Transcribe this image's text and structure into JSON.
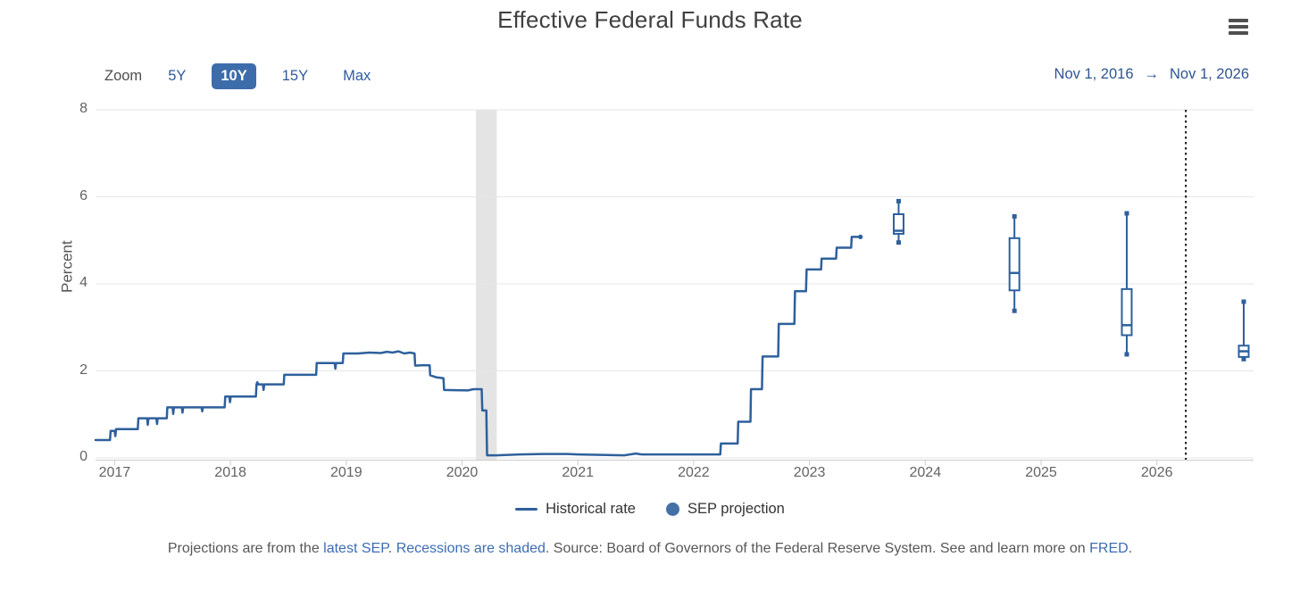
{
  "header": {
    "title": "Effective Federal Funds Rate",
    "menu_icon": "hamburger-icon"
  },
  "toolbar": {
    "zoom_label": "Zoom",
    "buttons": [
      {
        "label": "5Y",
        "selected": false
      },
      {
        "label": "10Y",
        "selected": true
      },
      {
        "label": "15Y",
        "selected": false
      },
      {
        "label": "Max",
        "selected": false
      }
    ],
    "range": {
      "from": "Nov 1, 2016",
      "arrow": "→",
      "to": "Nov 1, 2026"
    }
  },
  "colors": {
    "line": "#2e609c",
    "legend_dot": "#4470a8",
    "selected_button_bg": "#3d6cab",
    "link_blue": "#3c6db0",
    "gridline": "#e6e6e6",
    "axis_line": "#cccccc",
    "recession_band": "#e4e4e4",
    "divider": "#1a1a1a"
  },
  "chart_data": {
    "type": "line",
    "title": "Effective Federal Funds Rate",
    "xlabel": "",
    "ylabel": "Percent",
    "ylim": [
      0,
      8
    ],
    "yticks": [
      0,
      2,
      4,
      6,
      8
    ],
    "xlim": [
      2016.835,
      2026.835
    ],
    "xticks": [
      2017,
      2018,
      2019,
      2020,
      2021,
      2022,
      2023,
      2024,
      2025,
      2026
    ],
    "grid": true,
    "legend_position": "bottom",
    "recession_band": {
      "from": 2020.12,
      "to": 2020.3
    },
    "projection_divider_x": 2026.25,
    "series": [
      {
        "name": "Historical rate",
        "type": "line",
        "units": "percent",
        "points": [
          [
            2016.835,
            0.41
          ],
          [
            2016.96,
            0.41
          ],
          [
            2016.965,
            0.62
          ],
          [
            2017.0,
            0.62
          ],
          [
            2017.006,
            0.5
          ],
          [
            2017.012,
            0.66
          ],
          [
            2017.2,
            0.66
          ],
          [
            2017.205,
            0.91
          ],
          [
            2017.28,
            0.91
          ],
          [
            2017.286,
            0.76
          ],
          [
            2017.292,
            0.91
          ],
          [
            2017.36,
            0.91
          ],
          [
            2017.366,
            0.78
          ],
          [
            2017.372,
            0.91
          ],
          [
            2017.45,
            0.91
          ],
          [
            2017.455,
            1.16
          ],
          [
            2017.5,
            1.16
          ],
          [
            2017.506,
            1.01
          ],
          [
            2017.512,
            1.16
          ],
          [
            2017.58,
            1.16
          ],
          [
            2017.586,
            1.04
          ],
          [
            2017.592,
            1.16
          ],
          [
            2017.75,
            1.16
          ],
          [
            2017.756,
            1.07
          ],
          [
            2017.762,
            1.16
          ],
          [
            2017.95,
            1.16
          ],
          [
            2017.955,
            1.41
          ],
          [
            2017.99,
            1.41
          ],
          [
            2017.996,
            1.28
          ],
          [
            2018.002,
            1.41
          ],
          [
            2018.22,
            1.41
          ],
          [
            2018.225,
            1.69
          ],
          [
            2018.232,
            1.74
          ],
          [
            2018.24,
            1.69
          ],
          [
            2018.28,
            1.69
          ],
          [
            2018.286,
            1.56
          ],
          [
            2018.292,
            1.69
          ],
          [
            2018.46,
            1.69
          ],
          [
            2018.465,
            1.91
          ],
          [
            2018.74,
            1.91
          ],
          [
            2018.745,
            2.18
          ],
          [
            2018.9,
            2.18
          ],
          [
            2018.906,
            2.05
          ],
          [
            2018.912,
            2.18
          ],
          [
            2018.97,
            2.18
          ],
          [
            2018.975,
            2.4
          ],
          [
            2019.1,
            2.4
          ],
          [
            2019.2,
            2.42
          ],
          [
            2019.3,
            2.41
          ],
          [
            2019.35,
            2.44
          ],
          [
            2019.4,
            2.42
          ],
          [
            2019.45,
            2.45
          ],
          [
            2019.5,
            2.4
          ],
          [
            2019.55,
            2.42
          ],
          [
            2019.59,
            2.4
          ],
          [
            2019.595,
            2.12
          ],
          [
            2019.65,
            2.13
          ],
          [
            2019.72,
            2.13
          ],
          [
            2019.725,
            1.9
          ],
          [
            2019.78,
            1.85
          ],
          [
            2019.84,
            1.83
          ],
          [
            2019.845,
            1.56
          ],
          [
            2020.05,
            1.55
          ],
          [
            2020.1,
            1.58
          ],
          [
            2020.17,
            1.58
          ],
          [
            2020.175,
            1.09
          ],
          [
            2020.21,
            1.09
          ],
          [
            2020.216,
            0.06
          ],
          [
            2020.3,
            0.06
          ],
          [
            2020.5,
            0.08
          ],
          [
            2020.7,
            0.09
          ],
          [
            2020.9,
            0.09
          ],
          [
            2021.0,
            0.08
          ],
          [
            2021.2,
            0.07
          ],
          [
            2021.4,
            0.06
          ],
          [
            2021.5,
            0.1
          ],
          [
            2021.55,
            0.08
          ],
          [
            2021.7,
            0.08
          ],
          [
            2021.9,
            0.08
          ],
          [
            2022.0,
            0.08
          ],
          [
            2022.1,
            0.08
          ],
          [
            2022.23,
            0.08
          ],
          [
            2022.235,
            0.33
          ],
          [
            2022.38,
            0.33
          ],
          [
            2022.385,
            0.83
          ],
          [
            2022.49,
            0.83
          ],
          [
            2022.495,
            1.58
          ],
          [
            2022.59,
            1.58
          ],
          [
            2022.595,
            2.33
          ],
          [
            2022.73,
            2.33
          ],
          [
            2022.735,
            3.08
          ],
          [
            2022.87,
            3.08
          ],
          [
            2022.875,
            3.83
          ],
          [
            2022.97,
            3.83
          ],
          [
            2022.975,
            4.33
          ],
          [
            2023.1,
            4.33
          ],
          [
            2023.105,
            4.58
          ],
          [
            2023.23,
            4.58
          ],
          [
            2023.235,
            4.83
          ],
          [
            2023.36,
            4.83
          ],
          [
            2023.365,
            5.08
          ],
          [
            2023.44,
            5.08
          ]
        ]
      },
      {
        "name": "SEP projection",
        "type": "boxplot",
        "units": "percent",
        "points": [
          {
            "x": 2023.77,
            "low": 4.95,
            "q1": 5.15,
            "median": 5.22,
            "q3": 5.6,
            "high": 5.9
          },
          {
            "x": 2024.77,
            "low": 3.38,
            "q1": 3.85,
            "median": 4.25,
            "q3": 5.05,
            "high": 5.55
          },
          {
            "x": 2025.74,
            "low": 2.38,
            "q1": 2.82,
            "median": 3.05,
            "q3": 3.88,
            "high": 5.62
          },
          {
            "x": 2026.75,
            "low": 2.27,
            "q1": 2.32,
            "median": 2.45,
            "q3": 2.58,
            "high": 3.59
          }
        ]
      }
    ]
  },
  "legend": {
    "items": [
      {
        "label": "Historical rate",
        "marker": "line-swatch"
      },
      {
        "label": "SEP projection",
        "marker": "circle-swatch"
      }
    ]
  },
  "caption": {
    "segments": [
      {
        "text": "Projections are from the ",
        "link": false
      },
      {
        "text": "latest SEP",
        "link": true
      },
      {
        "text": ". ",
        "link": false
      },
      {
        "text": "Recessions are shaded",
        "link": true
      },
      {
        "text": ". Source: Board of Governors of the Federal Reserve System. See and learn more on ",
        "link": false
      },
      {
        "text": "FRED",
        "link": true
      },
      {
        "text": ".",
        "link": false
      }
    ]
  }
}
